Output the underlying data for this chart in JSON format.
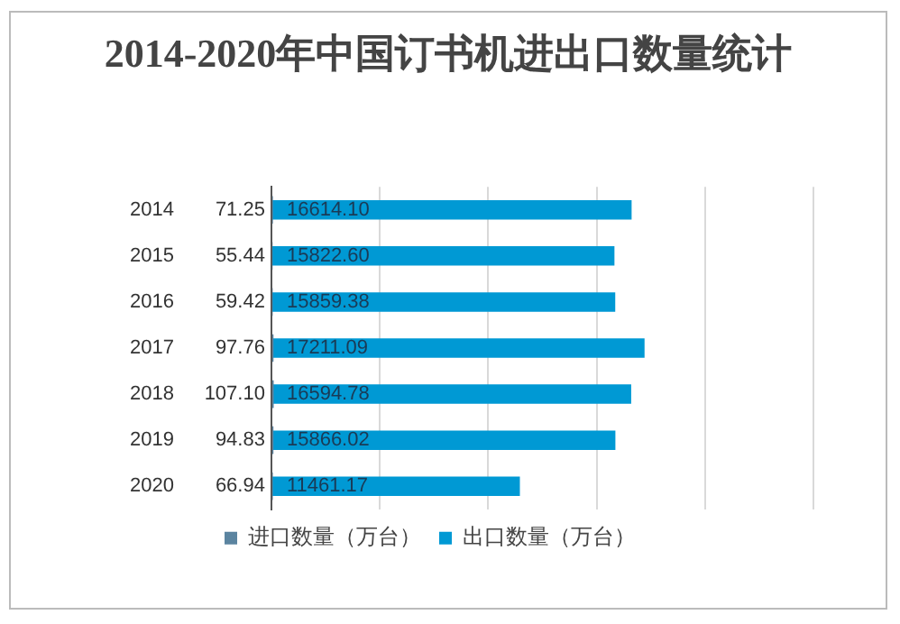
{
  "chart_data": {
    "type": "bar",
    "orientation": "horizontal",
    "title": "2014-2020年中国订书机进出口数量统计",
    "categories": [
      "2014",
      "2015",
      "2016",
      "2017",
      "2018",
      "2019",
      "2020"
    ],
    "series": [
      {
        "name": "进口数量（万台）",
        "color": "#5b84a0",
        "values": [
          71.25,
          55.44,
          59.42,
          97.76,
          107.1,
          94.83,
          66.94
        ],
        "value_labels": [
          "71.25",
          "55.44",
          "59.42",
          "97.76",
          "107.10",
          "94.83",
          "66.94"
        ]
      },
      {
        "name": "出口数量（万台）",
        "color": "#0099d4",
        "values": [
          16614.1,
          15822.6,
          15859.38,
          17211.09,
          16594.78,
          15866.02,
          11461.17
        ],
        "value_labels": [
          "16614.10",
          "15822.60",
          "15859.38",
          "17211.09",
          "16594.78",
          "15866.02",
          "11461.17"
        ]
      }
    ],
    "xlim": [
      0,
      25000
    ],
    "xticks": [
      0,
      5000,
      10000,
      15000,
      20000,
      25000
    ],
    "tick_labels": "y",
    "grid": "x",
    "legend": "bottom"
  }
}
